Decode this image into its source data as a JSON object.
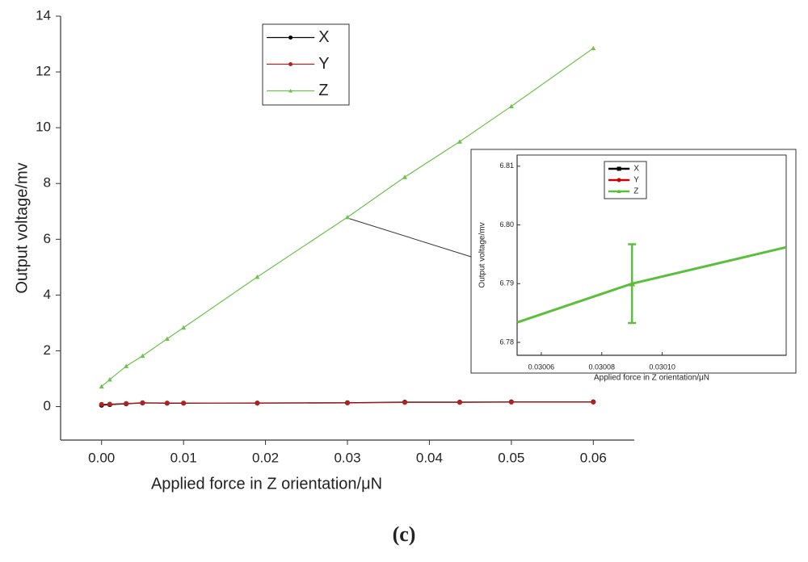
{
  "chart_data": [
    {
      "type": "line",
      "x_label": "Applied force in Z orientation/μN",
      "y_label": "Output voltage/mv",
      "x": [
        0,
        0.001,
        0.003,
        0.005,
        0.008,
        0.01,
        0.019,
        0.03,
        0.037,
        0.0437,
        0.05,
        0.06
      ],
      "series": [
        {
          "name": "X",
          "color": "#000000",
          "marker": "circle",
          "values": [
            0.05,
            0.07,
            0.1,
            0.13,
            0.12,
            0.12,
            0.13,
            0.14,
            0.16,
            0.16,
            0.17,
            0.17
          ]
        },
        {
          "name": "Y",
          "color": "#b22222",
          "marker": "circle",
          "values": [
            0.08,
            0.09,
            0.11,
            0.14,
            0.13,
            0.13,
            0.12,
            0.13,
            0.15,
            0.15,
            0.16,
            0.16
          ]
        },
        {
          "name": "Z",
          "color": "#6cc24a",
          "marker": "triangle",
          "values": [
            0.72,
            0.97,
            1.45,
            1.82,
            2.43,
            2.83,
            4.65,
            6.79,
            8.23,
            9.5,
            10.77,
            12.85
          ]
        }
      ],
      "xlim": [
        -0.005,
        0.065
      ],
      "ylim": [
        -1.2,
        14
      ],
      "xticks": [
        {
          "value": 0,
          "label": "0.00"
        },
        {
          "value": 0.01,
          "label": "0.01"
        },
        {
          "value": 0.02,
          "label": "0.02"
        },
        {
          "value": 0.03,
          "label": "0.03"
        },
        {
          "value": 0.04,
          "label": "0.04"
        },
        {
          "value": 0.05,
          "label": "0.05"
        },
        {
          "value": 0.06,
          "label": "0.06"
        }
      ],
      "yticks": [
        0,
        2,
        4,
        6,
        8,
        10,
        12,
        14
      ]
    },
    {
      "type": "line",
      "x_label": "Applied force in Z orientation/μN",
      "y_label": "Output voltage/mv",
      "x": [
        0.030052,
        0.03009,
        0.030141
      ],
      "series": [
        {
          "name": "X",
          "color": "#000000",
          "marker": "square",
          "values": [
            null,
            null,
            null
          ]
        },
        {
          "name": "Y",
          "color": "#cc0000",
          "marker": "circle",
          "values": [
            null,
            null,
            null
          ]
        },
        {
          "name": "Z",
          "color": "#5cbf3c",
          "marker": "triangle",
          "values": [
            6.7834,
            6.79,
            6.7962
          ],
          "errors": [
            null,
            0.0067,
            null
          ]
        }
      ],
      "xlim": [
        0.030052,
        0.030141
      ],
      "ylim": [
        6.7778,
        6.8119
      ],
      "xticks": [
        0.03006,
        {
          "value": 0.03008,
          "label": "0.03008"
        },
        {
          "value": 0.0301,
          "label": "0.03010"
        }
      ],
      "yticks": [
        6.78,
        6.79,
        {
          "value": 6.8,
          "label": "6.80"
        },
        6.81
      ]
    }
  ],
  "caption": "(c)"
}
